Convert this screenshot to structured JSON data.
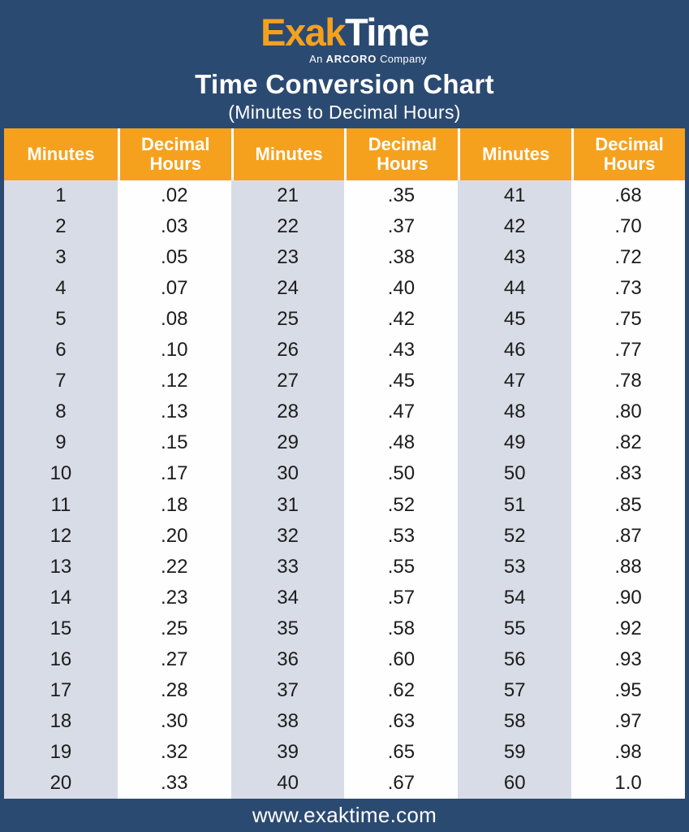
{
  "brand": {
    "logo_primary": "Exak",
    "logo_secondary": "Time",
    "tagline_prefix": "An ",
    "tagline_brand": "ARCORO",
    "tagline_suffix": " Company"
  },
  "header": {
    "title": "Time Conversion Chart",
    "subtitle": "(Minutes to Decimal Hours)"
  },
  "table": {
    "column_headers": [
      "Minutes",
      "Decimal Hours",
      "Minutes",
      "Decimal Hours",
      "Minutes",
      "Decimal Hours"
    ],
    "rows": [
      [
        "1",
        ".02",
        "21",
        ".35",
        "41",
        ".68"
      ],
      [
        "2",
        ".03",
        "22",
        ".37",
        "42",
        ".70"
      ],
      [
        "3",
        ".05",
        "23",
        ".38",
        "43",
        ".72"
      ],
      [
        "4",
        ".07",
        "24",
        ".40",
        "44",
        ".73"
      ],
      [
        "5",
        ".08",
        "25",
        ".42",
        "45",
        ".75"
      ],
      [
        "6",
        ".10",
        "26",
        ".43",
        "46",
        ".77"
      ],
      [
        "7",
        ".12",
        "27",
        ".45",
        "47",
        ".78"
      ],
      [
        "8",
        ".13",
        "28",
        ".47",
        "48",
        ".80"
      ],
      [
        "9",
        ".15",
        "29",
        ".48",
        "49",
        ".82"
      ],
      [
        "10",
        ".17",
        "30",
        ".50",
        "50",
        ".83"
      ],
      [
        "11",
        ".18",
        "31",
        ".52",
        "51",
        ".85"
      ],
      [
        "12",
        ".20",
        "32",
        ".53",
        "52",
        ".87"
      ],
      [
        "13",
        ".22",
        "33",
        ".55",
        "53",
        ".88"
      ],
      [
        "14",
        ".23",
        "34",
        ".57",
        "54",
        ".90"
      ],
      [
        "15",
        ".25",
        "35",
        ".58",
        "55",
        ".92"
      ],
      [
        "16",
        ".27",
        "36",
        ".60",
        "56",
        ".93"
      ],
      [
        "17",
        ".28",
        "37",
        ".62",
        "57",
        ".95"
      ],
      [
        "18",
        ".30",
        "38",
        ".63",
        "58",
        ".97"
      ],
      [
        "19",
        ".32",
        "39",
        ".65",
        "59",
        ".98"
      ],
      [
        "20",
        ".33",
        "40",
        ".67",
        "60",
        "1.0"
      ]
    ]
  },
  "footer": {
    "website": "www.exaktime.com"
  },
  "colors": {
    "navy": "#2b4a72",
    "orange": "#f6a11d",
    "column_gray": "#d8dce6",
    "column_white": "#fefefe",
    "text_dark": "#1c1c1c",
    "white": "#ffffff"
  }
}
